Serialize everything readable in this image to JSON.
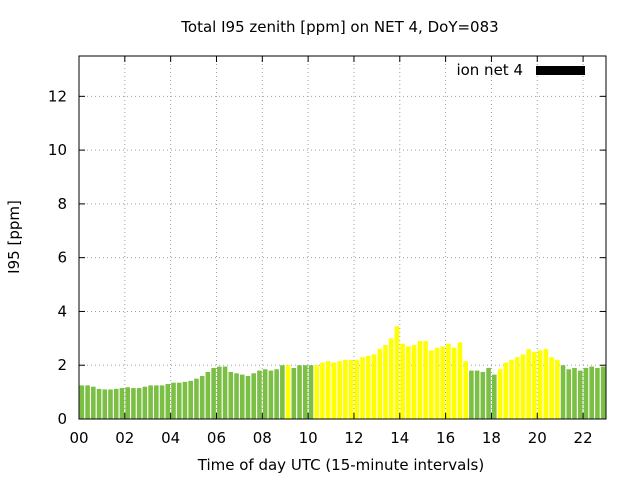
{
  "chart_data": {
    "type": "bar",
    "title": "Total I95 zenith [ppm] on NET 4, DoY=083",
    "xlabel": "Time of day UTC (15-minute intervals)",
    "ylabel": "I95 [ppm]",
    "xlim": [
      0,
      23
    ],
    "ylim": [
      0,
      13.5
    ],
    "x_ticks": [
      "00",
      "02",
      "04",
      "06",
      "08",
      "10",
      "12",
      "14",
      "16",
      "18",
      "20",
      "22"
    ],
    "y_ticks": [
      "0",
      "2",
      "4",
      "6",
      "8",
      "10",
      "12"
    ],
    "grid": true,
    "legend": {
      "position": "top-right",
      "entries": [
        {
          "label": "ion net 4",
          "color": "#000000"
        }
      ]
    },
    "colors": {
      "low": "#7bbf45",
      "high": "#ffff00",
      "legend": "#000000"
    },
    "interval_hours": 0.25,
    "series": [
      {
        "values": [
          1.25,
          1.25,
          1.2,
          1.12,
          1.1,
          1.1,
          1.12,
          1.15,
          1.18,
          1.15,
          1.15,
          1.2,
          1.25,
          1.25,
          1.25,
          1.3,
          1.35,
          1.35,
          1.38,
          1.42,
          1.5,
          1.6,
          1.75,
          1.9,
          1.95,
          1.95,
          1.75,
          1.7,
          1.65,
          1.6,
          1.7,
          1.8,
          1.85,
          1.8,
          1.85,
          2.0,
          2.0,
          1.9,
          2.0,
          2.0,
          2.0,
          2.0,
          2.1,
          2.15,
          2.1,
          2.15,
          2.2,
          2.2,
          2.2,
          2.3,
          2.35,
          2.4,
          2.6,
          2.75,
          3.0,
          3.45,
          2.8,
          2.7,
          2.75,
          2.9,
          2.9,
          2.55,
          2.65,
          2.7,
          2.8,
          2.65,
          2.85,
          2.15,
          1.8,
          1.8,
          1.75,
          1.9,
          1.65,
          1.85,
          2.1,
          2.2,
          2.3,
          2.4,
          2.6,
          2.5,
          2.55,
          2.6,
          2.3,
          2.2,
          2.0,
          1.85,
          1.9,
          1.8,
          1.9,
          1.95,
          1.9,
          1.95
        ],
        "category": [
          "low",
          "low",
          "low",
          "low",
          "low",
          "low",
          "low",
          "low",
          "low",
          "low",
          "low",
          "low",
          "low",
          "low",
          "low",
          "low",
          "low",
          "low",
          "low",
          "low",
          "low",
          "low",
          "low",
          "low",
          "low",
          "low",
          "low",
          "low",
          "low",
          "low",
          "low",
          "low",
          "low",
          "low",
          "low",
          "low",
          "high",
          "low",
          "low",
          "low",
          "low",
          "high",
          "high",
          "high",
          "high",
          "high",
          "high",
          "high",
          "high",
          "high",
          "high",
          "high",
          "high",
          "high",
          "high",
          "high",
          "high",
          "high",
          "high",
          "high",
          "high",
          "high",
          "high",
          "high",
          "high",
          "high",
          "high",
          "high",
          "low",
          "low",
          "low",
          "low",
          "low",
          "high",
          "high",
          "high",
          "high",
          "high",
          "high",
          "high",
          "high",
          "high",
          "high",
          "high",
          "low",
          "low",
          "low",
          "low",
          "low",
          "low",
          "low",
          "low"
        ]
      }
    ]
  }
}
